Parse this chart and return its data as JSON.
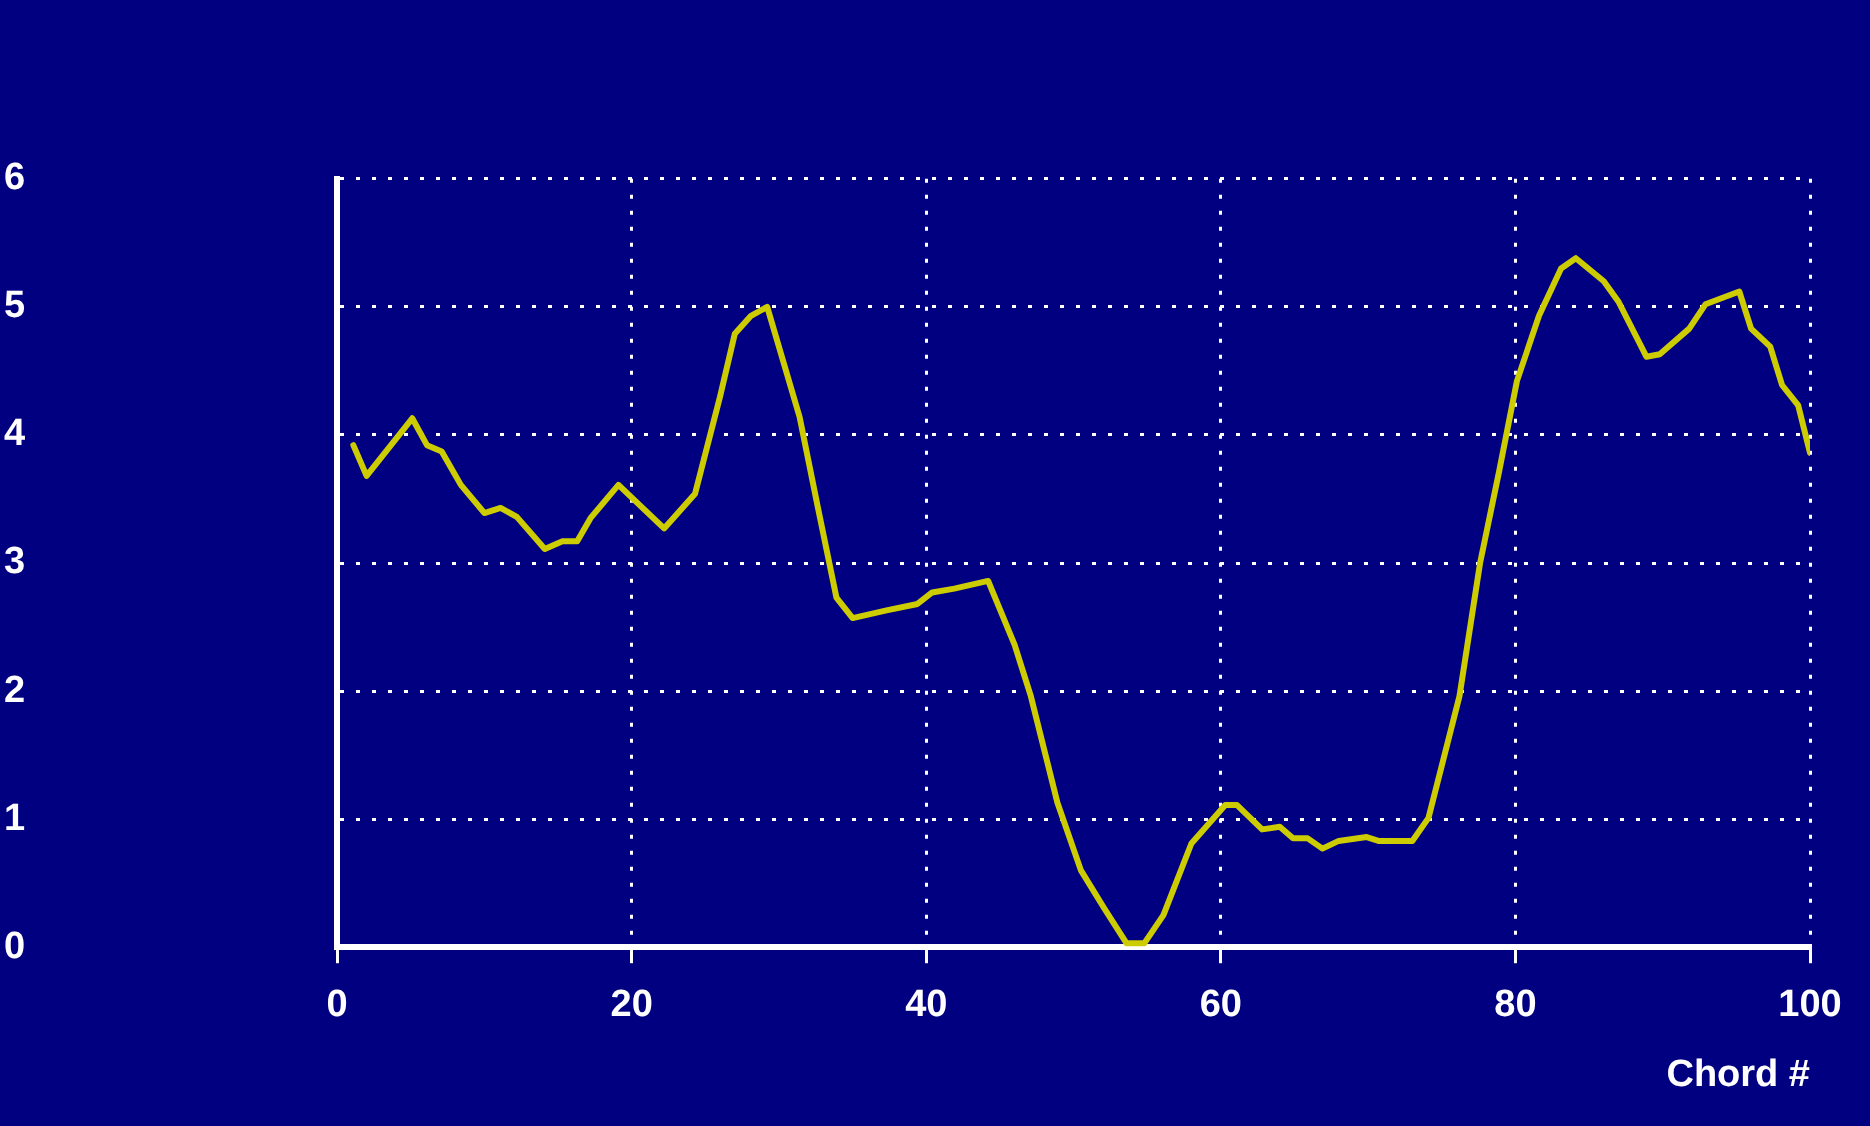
{
  "chart_data": {
    "type": "line",
    "xlabel": "Chord #",
    "x": [
      1.1,
      2.0,
      5.1,
      6.1,
      7.1,
      8.4,
      10.0,
      11.1,
      12.2,
      14.1,
      15.3,
      16.3,
      17.2,
      19.1,
      22.2,
      24.3,
      26.0,
      27.0,
      28.1,
      29.2,
      31.4,
      32.7,
      33.9,
      35.0,
      37.3,
      39.4,
      40.4,
      41.9,
      44.2,
      46.0,
      47.1,
      48.9,
      50.5,
      52.1,
      53.6,
      54.8,
      56.1,
      58.0,
      60.3,
      61.1,
      62.8,
      64.0,
      64.9,
      65.9,
      66.9,
      68.0,
      69.9,
      70.7,
      73.0,
      74.1,
      76.2,
      77.6,
      78.9,
      80.1,
      81.6,
      83.1,
      84.1,
      86.0,
      87.0,
      88.9,
      89.8,
      91.8,
      92.9,
      95.2,
      96.0,
      97.3,
      98.1,
      99.2,
      100
    ],
    "series": [
      {
        "color": "#cccc00",
        "values": [
          3.92,
          3.68,
          4.13,
          3.92,
          3.87,
          3.61,
          3.39,
          3.43,
          3.36,
          3.11,
          3.17,
          3.17,
          3.35,
          3.61,
          3.27,
          3.54,
          4.3,
          4.79,
          4.93,
          5.0,
          4.14,
          3.4,
          2.73,
          2.57,
          2.63,
          2.68,
          2.77,
          2.8,
          2.86,
          2.36,
          1.96,
          1.13,
          0.6,
          0.3,
          0.03,
          0.03,
          0.25,
          0.81,
          1.11,
          1.11,
          0.92,
          0.94,
          0.85,
          0.85,
          0.77,
          0.83,
          0.86,
          0.83,
          0.83,
          1.01,
          1.96,
          3.0,
          3.72,
          4.42,
          4.93,
          5.3,
          5.38,
          5.2,
          5.04,
          4.61,
          4.63,
          4.83,
          5.02,
          5.12,
          4.83,
          4.69,
          4.39,
          4.23,
          3.86
        ]
      }
    ],
    "xlim": [
      0,
      100
    ],
    "xticks": [
      0,
      20,
      40,
      60,
      80,
      100
    ],
    "ylim": [
      0,
      6
    ],
    "yticks": [
      0,
      1,
      2,
      3,
      4,
      5,
      6
    ],
    "grid": true,
    "legend": false,
    "marker": "none",
    "line_style": "solid"
  }
}
